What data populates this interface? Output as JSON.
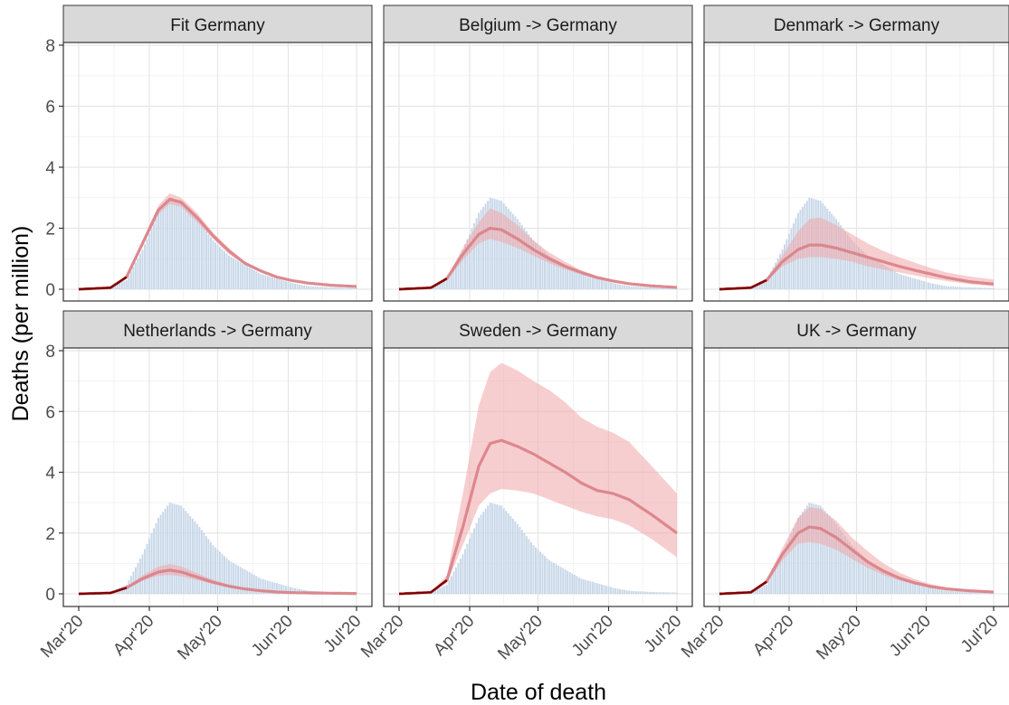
{
  "chart_data": {
    "type": "area",
    "xlabel": "Date of death",
    "ylabel": "Deaths (per million)",
    "x_ticks": [
      "Mar'20",
      "Apr'20",
      "May'20",
      "Jun'20",
      "Jul'20"
    ],
    "x_domain": [
      "2020-03-01",
      "2020-07-01"
    ],
    "y_ticks": [
      0,
      2,
      4,
      6,
      8
    ],
    "ylim": [
      0,
      8
    ],
    "grid": true,
    "colors": {
      "observed_bars": "#c7d7e8",
      "fit_line": "#d97f86",
      "interval_band": "#f0a6a8",
      "cumulative_line": "#7a0000",
      "strip_fill": "#d9d9d9"
    },
    "observed_germany": [
      {
        "date": "2020-03-01",
        "y": 0
      },
      {
        "date": "2020-03-15",
        "y": 0.05
      },
      {
        "date": "2020-03-22",
        "y": 0.3
      },
      {
        "date": "2020-03-29",
        "y": 1.3
      },
      {
        "date": "2020-04-05",
        "y": 2.5
      },
      {
        "date": "2020-04-10",
        "y": 3.0
      },
      {
        "date": "2020-04-15",
        "y": 2.9
      },
      {
        "date": "2020-04-22",
        "y": 2.3
      },
      {
        "date": "2020-04-29",
        "y": 1.6
      },
      {
        "date": "2020-05-06",
        "y": 1.1
      },
      {
        "date": "2020-05-13",
        "y": 0.8
      },
      {
        "date": "2020-05-20",
        "y": 0.5
      },
      {
        "date": "2020-05-27",
        "y": 0.35
      },
      {
        "date": "2020-06-03",
        "y": 0.2
      },
      {
        "date": "2020-06-10",
        "y": 0.1
      },
      {
        "date": "2020-06-20",
        "y": 0.06
      },
      {
        "date": "2020-07-01",
        "y": 0.04
      }
    ],
    "panels": [
      {
        "title": "Fit Germany",
        "fit": [
          {
            "date": "2020-03-01",
            "y": 0,
            "lo": 0,
            "hi": 0
          },
          {
            "date": "2020-03-15",
            "y": 0.05,
            "lo": 0.04,
            "hi": 0.06
          },
          {
            "date": "2020-03-22",
            "y": 0.4,
            "lo": 0.35,
            "hi": 0.45
          },
          {
            "date": "2020-03-29",
            "y": 1.5,
            "lo": 1.4,
            "hi": 1.6
          },
          {
            "date": "2020-04-05",
            "y": 2.6,
            "lo": 2.45,
            "hi": 2.75
          },
          {
            "date": "2020-04-10",
            "y": 2.95,
            "lo": 2.8,
            "hi": 3.15
          },
          {
            "date": "2020-04-15",
            "y": 2.85,
            "lo": 2.7,
            "hi": 3.0
          },
          {
            "date": "2020-04-22",
            "y": 2.35,
            "lo": 2.2,
            "hi": 2.5
          },
          {
            "date": "2020-04-29",
            "y": 1.75,
            "lo": 1.65,
            "hi": 1.85
          },
          {
            "date": "2020-05-06",
            "y": 1.25,
            "lo": 1.15,
            "hi": 1.35
          },
          {
            "date": "2020-05-13",
            "y": 0.85,
            "lo": 0.8,
            "hi": 0.9
          },
          {
            "date": "2020-05-20",
            "y": 0.6,
            "lo": 0.55,
            "hi": 0.65
          },
          {
            "date": "2020-05-27",
            "y": 0.4,
            "lo": 0.37,
            "hi": 0.43
          },
          {
            "date": "2020-06-03",
            "y": 0.28,
            "lo": 0.25,
            "hi": 0.3
          },
          {
            "date": "2020-06-10",
            "y": 0.2,
            "lo": 0.18,
            "hi": 0.22
          },
          {
            "date": "2020-06-20",
            "y": 0.13,
            "lo": 0.11,
            "hi": 0.15
          },
          {
            "date": "2020-07-01",
            "y": 0.09,
            "lo": 0.07,
            "hi": 0.11
          }
        ]
      },
      {
        "title": "Belgium -> Germany",
        "fit": [
          {
            "date": "2020-03-01",
            "y": 0,
            "lo": 0,
            "hi": 0
          },
          {
            "date": "2020-03-15",
            "y": 0.05,
            "lo": 0.04,
            "hi": 0.06
          },
          {
            "date": "2020-03-22",
            "y": 0.35,
            "lo": 0.3,
            "hi": 0.4
          },
          {
            "date": "2020-03-29",
            "y": 1.15,
            "lo": 0.95,
            "hi": 1.35
          },
          {
            "date": "2020-04-05",
            "y": 1.8,
            "lo": 1.5,
            "hi": 2.2
          },
          {
            "date": "2020-04-10",
            "y": 2.0,
            "lo": 1.65,
            "hi": 2.65
          },
          {
            "date": "2020-04-15",
            "y": 1.95,
            "lo": 1.55,
            "hi": 2.5
          },
          {
            "date": "2020-04-22",
            "y": 1.65,
            "lo": 1.35,
            "hi": 2.1
          },
          {
            "date": "2020-04-29",
            "y": 1.3,
            "lo": 1.1,
            "hi": 1.6
          },
          {
            "date": "2020-05-06",
            "y": 1.0,
            "lo": 0.85,
            "hi": 1.2
          },
          {
            "date": "2020-05-13",
            "y": 0.75,
            "lo": 0.65,
            "hi": 0.9
          },
          {
            "date": "2020-05-20",
            "y": 0.55,
            "lo": 0.48,
            "hi": 0.62
          },
          {
            "date": "2020-05-27",
            "y": 0.38,
            "lo": 0.34,
            "hi": 0.44
          },
          {
            "date": "2020-06-03",
            "y": 0.27,
            "lo": 0.24,
            "hi": 0.31
          },
          {
            "date": "2020-06-10",
            "y": 0.18,
            "lo": 0.16,
            "hi": 0.21
          },
          {
            "date": "2020-06-20",
            "y": 0.11,
            "lo": 0.1,
            "hi": 0.13
          },
          {
            "date": "2020-07-01",
            "y": 0.06,
            "lo": 0.05,
            "hi": 0.08
          }
        ]
      },
      {
        "title": "Denmark -> Germany",
        "fit": [
          {
            "date": "2020-03-01",
            "y": 0,
            "lo": 0,
            "hi": 0
          },
          {
            "date": "2020-03-15",
            "y": 0.05,
            "lo": 0.04,
            "hi": 0.06
          },
          {
            "date": "2020-03-22",
            "y": 0.3,
            "lo": 0.25,
            "hi": 0.35
          },
          {
            "date": "2020-03-29",
            "y": 0.9,
            "lo": 0.75,
            "hi": 1.1
          },
          {
            "date": "2020-04-05",
            "y": 1.3,
            "lo": 1.0,
            "hi": 1.9
          },
          {
            "date": "2020-04-10",
            "y": 1.45,
            "lo": 1.05,
            "hi": 2.3
          },
          {
            "date": "2020-04-15",
            "y": 1.45,
            "lo": 1.05,
            "hi": 2.35
          },
          {
            "date": "2020-04-22",
            "y": 1.35,
            "lo": 1.0,
            "hi": 2.1
          },
          {
            "date": "2020-04-29",
            "y": 1.2,
            "lo": 0.9,
            "hi": 1.8
          },
          {
            "date": "2020-05-06",
            "y": 1.05,
            "lo": 0.75,
            "hi": 1.5
          },
          {
            "date": "2020-05-13",
            "y": 0.9,
            "lo": 0.65,
            "hi": 1.25
          },
          {
            "date": "2020-05-20",
            "y": 0.75,
            "lo": 0.55,
            "hi": 1.05
          },
          {
            "date": "2020-05-27",
            "y": 0.62,
            "lo": 0.45,
            "hi": 0.87
          },
          {
            "date": "2020-06-03",
            "y": 0.5,
            "lo": 0.35,
            "hi": 0.7
          },
          {
            "date": "2020-06-10",
            "y": 0.38,
            "lo": 0.27,
            "hi": 0.55
          },
          {
            "date": "2020-06-20",
            "y": 0.25,
            "lo": 0.17,
            "hi": 0.42
          },
          {
            "date": "2020-07-01",
            "y": 0.17,
            "lo": 0.1,
            "hi": 0.32
          }
        ]
      },
      {
        "title": "Netherlands -> Germany",
        "fit": [
          {
            "date": "2020-03-01",
            "y": 0,
            "lo": 0,
            "hi": 0
          },
          {
            "date": "2020-03-15",
            "y": 0.03,
            "lo": 0.02,
            "hi": 0.04
          },
          {
            "date": "2020-03-22",
            "y": 0.2,
            "lo": 0.17,
            "hi": 0.24
          },
          {
            "date": "2020-03-29",
            "y": 0.5,
            "lo": 0.43,
            "hi": 0.6
          },
          {
            "date": "2020-04-05",
            "y": 0.72,
            "lo": 0.6,
            "hi": 0.9
          },
          {
            "date": "2020-04-10",
            "y": 0.78,
            "lo": 0.62,
            "hi": 0.98
          },
          {
            "date": "2020-04-15",
            "y": 0.72,
            "lo": 0.58,
            "hi": 0.9
          },
          {
            "date": "2020-04-22",
            "y": 0.55,
            "lo": 0.45,
            "hi": 0.68
          },
          {
            "date": "2020-04-29",
            "y": 0.38,
            "lo": 0.32,
            "hi": 0.46
          },
          {
            "date": "2020-05-06",
            "y": 0.25,
            "lo": 0.21,
            "hi": 0.3
          },
          {
            "date": "2020-05-13",
            "y": 0.16,
            "lo": 0.14,
            "hi": 0.19
          },
          {
            "date": "2020-05-20",
            "y": 0.1,
            "lo": 0.08,
            "hi": 0.12
          },
          {
            "date": "2020-05-27",
            "y": 0.06,
            "lo": 0.05,
            "hi": 0.08
          },
          {
            "date": "2020-06-03",
            "y": 0.04,
            "lo": 0.03,
            "hi": 0.05
          },
          {
            "date": "2020-06-10",
            "y": 0.03,
            "lo": 0.02,
            "hi": 0.04
          },
          {
            "date": "2020-06-20",
            "y": 0.02,
            "lo": 0.01,
            "hi": 0.03
          },
          {
            "date": "2020-07-01",
            "y": 0.01,
            "lo": 0.01,
            "hi": 0.02
          }
        ]
      },
      {
        "title": "Sweden -> Germany",
        "fit": [
          {
            "date": "2020-03-01",
            "y": 0,
            "lo": 0,
            "hi": 0
          },
          {
            "date": "2020-03-15",
            "y": 0.05,
            "lo": 0.04,
            "hi": 0.07
          },
          {
            "date": "2020-03-22",
            "y": 0.45,
            "lo": 0.35,
            "hi": 0.6
          },
          {
            "date": "2020-03-29",
            "y": 2.2,
            "lo": 1.6,
            "hi": 3.3
          },
          {
            "date": "2020-04-05",
            "y": 4.2,
            "lo": 2.9,
            "hi": 6.2
          },
          {
            "date": "2020-04-10",
            "y": 4.95,
            "lo": 3.3,
            "hi": 7.3
          },
          {
            "date": "2020-04-15",
            "y": 5.05,
            "lo": 3.45,
            "hi": 7.6
          },
          {
            "date": "2020-04-22",
            "y": 4.85,
            "lo": 3.4,
            "hi": 7.35
          },
          {
            "date": "2020-04-29",
            "y": 4.6,
            "lo": 3.3,
            "hi": 7.0
          },
          {
            "date": "2020-05-06",
            "y": 4.3,
            "lo": 3.1,
            "hi": 6.7
          },
          {
            "date": "2020-05-13",
            "y": 4.0,
            "lo": 2.9,
            "hi": 6.3
          },
          {
            "date": "2020-05-20",
            "y": 3.65,
            "lo": 2.7,
            "hi": 5.8
          },
          {
            "date": "2020-05-27",
            "y": 3.4,
            "lo": 2.55,
            "hi": 5.5
          },
          {
            "date": "2020-06-03",
            "y": 3.3,
            "lo": 2.45,
            "hi": 5.3
          },
          {
            "date": "2020-06-10",
            "y": 3.1,
            "lo": 2.25,
            "hi": 5.0
          },
          {
            "date": "2020-06-20",
            "y": 2.6,
            "lo": 1.8,
            "hi": 4.2
          },
          {
            "date": "2020-07-01",
            "y": 2.0,
            "lo": 1.2,
            "hi": 3.3
          }
        ]
      },
      {
        "title": "UK -> Germany",
        "fit": [
          {
            "date": "2020-03-01",
            "y": 0,
            "lo": 0,
            "hi": 0
          },
          {
            "date": "2020-03-15",
            "y": 0.05,
            "lo": 0.04,
            "hi": 0.06
          },
          {
            "date": "2020-03-22",
            "y": 0.4,
            "lo": 0.33,
            "hi": 0.47
          },
          {
            "date": "2020-03-29",
            "y": 1.3,
            "lo": 1.1,
            "hi": 1.5
          },
          {
            "date": "2020-04-05",
            "y": 2.0,
            "lo": 1.65,
            "hi": 2.5
          },
          {
            "date": "2020-04-10",
            "y": 2.2,
            "lo": 1.7,
            "hi": 2.85
          },
          {
            "date": "2020-04-15",
            "y": 2.15,
            "lo": 1.65,
            "hi": 2.8
          },
          {
            "date": "2020-04-22",
            "y": 1.85,
            "lo": 1.45,
            "hi": 2.4
          },
          {
            "date": "2020-04-29",
            "y": 1.45,
            "lo": 1.15,
            "hi": 1.85
          },
          {
            "date": "2020-05-06",
            "y": 1.05,
            "lo": 0.85,
            "hi": 1.4
          },
          {
            "date": "2020-05-13",
            "y": 0.75,
            "lo": 0.62,
            "hi": 1.0
          },
          {
            "date": "2020-05-20",
            "y": 0.52,
            "lo": 0.44,
            "hi": 0.7
          },
          {
            "date": "2020-05-27",
            "y": 0.36,
            "lo": 0.3,
            "hi": 0.48
          },
          {
            "date": "2020-06-03",
            "y": 0.24,
            "lo": 0.2,
            "hi": 0.32
          },
          {
            "date": "2020-06-10",
            "y": 0.16,
            "lo": 0.13,
            "hi": 0.22
          },
          {
            "date": "2020-06-20",
            "y": 0.1,
            "lo": 0.08,
            "hi": 0.14
          },
          {
            "date": "2020-07-01",
            "y": 0.06,
            "lo": 0.04,
            "hi": 0.09
          }
        ]
      }
    ]
  }
}
